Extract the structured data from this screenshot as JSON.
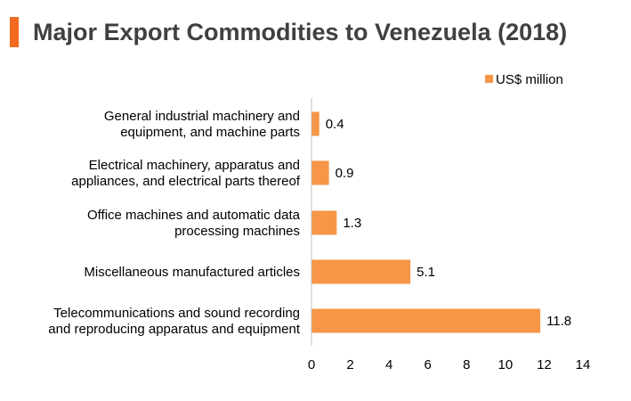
{
  "chart_data": {
    "type": "bar",
    "orientation": "horizontal",
    "title": "Major Export Commodities to Venezuela (2018)",
    "categories": [
      [
        "General industrial machinery and",
        "equipment, and machine parts"
      ],
      [
        "Electrical machinery, apparatus and",
        "appliances, and electrical parts thereof"
      ],
      [
        "Office machines and automatic data",
        "processing machines"
      ],
      [
        "Miscellaneous manufactured articles"
      ],
      [
        "Telecommunications and sound recording",
        "and reproducing apparatus and equipment"
      ]
    ],
    "series": [
      {
        "name": "US$ million",
        "values": [
          0.4,
          0.9,
          1.3,
          5.1,
          11.8
        ],
        "labels": [
          "0.4",
          "0.9",
          "1.3",
          "5.1",
          "11.8"
        ],
        "color": "#f79646"
      }
    ],
    "xlim": [
      0,
      14
    ],
    "xticks": [
      0,
      2,
      4,
      6,
      8,
      10,
      12,
      14
    ],
    "legend_position": "top-right",
    "grid": false,
    "accent_color": "#f26b21",
    "axis_color": "#bfbfbf"
  }
}
